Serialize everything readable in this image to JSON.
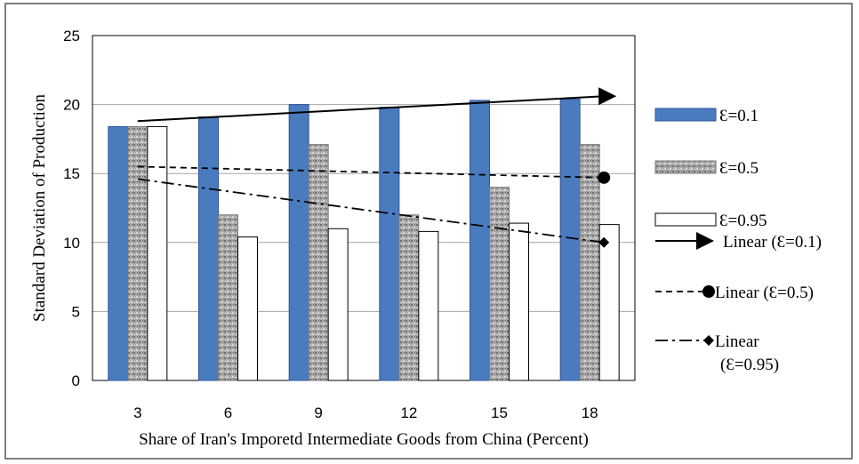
{
  "chart_data": {
    "type": "bar",
    "categories": [
      "3",
      "6",
      "9",
      "12",
      "15",
      "18"
    ],
    "series": [
      {
        "name": "Ɛ=0.1",
        "values": [
          18.4,
          19.1,
          20.0,
          19.8,
          20.3,
          20.4
        ],
        "color": "#4a7bbf"
      },
      {
        "name": "Ɛ=0.5",
        "values": [
          18.4,
          12.0,
          17.1,
          12.0,
          14.0,
          17.1
        ],
        "color": "#9a9a9a"
      },
      {
        "name": "Ɛ=0.95",
        "values": [
          18.4,
          10.4,
          11.0,
          10.8,
          11.4,
          11.3
        ],
        "color": "#ffffff"
      }
    ],
    "trendlines": [
      {
        "name": "Linear (Ɛ=0.1)",
        "start": 18.8,
        "end": 20.6,
        "style": "solid",
        "marker": "arrow"
      },
      {
        "name": "Linear (Ɛ=0.5)",
        "start": 15.5,
        "end": 14.7,
        "style": "dashed",
        "marker": "circle"
      },
      {
        "name": "Linear",
        "name_line2": "(Ɛ=0.95)",
        "start": 14.6,
        "end": 10.0,
        "style": "dashdot",
        "marker": "diamond"
      }
    ],
    "xlabel": "Share of Iran's Imporetd Intermediate Goods from China (Percent)",
    "ylabel": "Standard Deviation of Production",
    "ylim": [
      0,
      25
    ],
    "yticks": [
      "0",
      "5",
      "10",
      "15",
      "20",
      "25"
    ],
    "grid": true,
    "legend_position": "right"
  }
}
